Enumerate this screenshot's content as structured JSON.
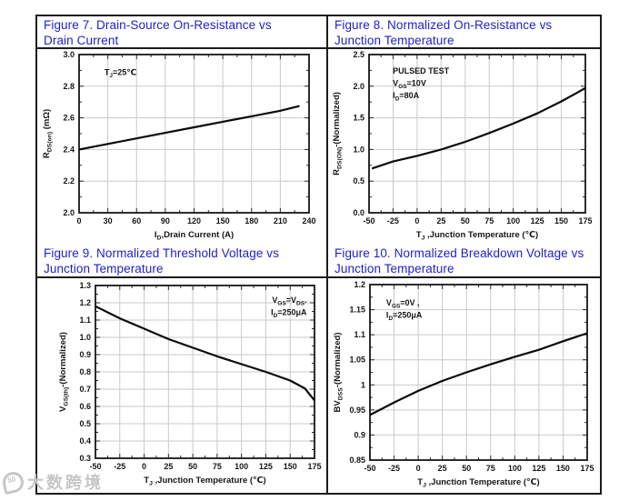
{
  "page": {
    "watermark_text": "大数跨境",
    "watermark_badge": "50",
    "title_color": "#1e1ecb"
  },
  "cells": [
    {
      "title": "Figure 7. Drain-Source On-Resistance vs Drain Current"
    },
    {
      "title": "Figure 8. Normalized On-Resistance vs Junction Temperature"
    },
    {
      "title": "Figure 9. Normalized Threshold Voltage vs Junction Temperature"
    },
    {
      "title": "Figure 10. Normalized Breakdown Voltage vs Junction Temperature"
    }
  ],
  "chart_data": [
    {
      "type": "line",
      "title": "Figure 7. Drain-Source On-Resistance vs Drain Current",
      "xlabel": "I_{D},Drain Current (A)",
      "ylabel": "R_{DS(on)} (mΩ)",
      "xlim": [
        0,
        240
      ],
      "ylim": [
        2.0,
        3.0
      ],
      "xticks": [
        0,
        30,
        60,
        90,
        120,
        150,
        180,
        210,
        240
      ],
      "xtick_labels": [
        "0",
        "30",
        "60",
        "90",
        "120",
        "150",
        "180",
        "210",
        "240"
      ],
      "yticks": [
        2.0,
        2.2,
        2.4,
        2.6,
        2.8,
        3.0
      ],
      "ytick_labels": [
        "2.0",
        "2.2",
        "2.4",
        "2.6",
        "2.8",
        "3.0"
      ],
      "grid": true,
      "legend": "none",
      "annotation": {
        "align": "left",
        "lines": [
          "T_{J}=25℃"
        ]
      },
      "x": [
        0,
        30,
        60,
        90,
        120,
        150,
        180,
        210,
        230
      ],
      "y": [
        2.4,
        2.435,
        2.47,
        2.505,
        2.54,
        2.575,
        2.61,
        2.645,
        2.675
      ]
    },
    {
      "type": "line",
      "title": "Figure 8. Normalized On-Resistance vs Junction Temperature",
      "xlabel": "T_{J} ,Junction Temperature (℃)",
      "ylabel": "R_{DS(ON)}-(Normalized)",
      "xlim": [
        -50,
        175
      ],
      "ylim": [
        0.0,
        2.5
      ],
      "xticks": [
        -50,
        -25,
        0,
        25,
        50,
        75,
        100,
        125,
        150,
        175
      ],
      "xtick_labels": [
        "-50",
        "-25",
        "0",
        "25",
        "50",
        "75",
        "100",
        "125",
        "150",
        "175"
      ],
      "yticks": [
        0.0,
        0.5,
        1.0,
        1.5,
        2.0,
        2.5
      ],
      "ytick_labels": [
        "0.0",
        "0.5",
        "1.0",
        "1.5",
        "2.0",
        "2.5"
      ],
      "grid": true,
      "legend": "none",
      "annotation": {
        "align": "left",
        "lines": [
          "PULSED TEST",
          "V_{GS}=10V",
          "I_{D}=80A"
        ]
      },
      "x": [
        -47,
        -25,
        0,
        25,
        50,
        75,
        100,
        125,
        150,
        175
      ],
      "y": [
        0.7,
        0.81,
        0.9,
        1.0,
        1.12,
        1.26,
        1.41,
        1.57,
        1.76,
        1.97
      ]
    },
    {
      "type": "line",
      "title": "Figure 9. Normalized Threshold Voltage vs Junction Temperature",
      "xlabel": "T_{J} ,Junction Temperature (℃)",
      "ylabel": "V_{GS(th)}-(Normalized)",
      "xlim": [
        -50,
        175
      ],
      "ylim": [
        0.3,
        1.3
      ],
      "xticks": [
        -50,
        -25,
        0,
        25,
        50,
        75,
        100,
        125,
        150,
        175
      ],
      "xtick_labels": [
        "-50",
        "-25",
        "0",
        "25",
        "50",
        "75",
        "100",
        "125",
        "150",
        "175"
      ],
      "yticks": [
        0.3,
        0.4,
        0.5,
        0.6,
        0.7,
        0.8,
        0.9,
        1.0,
        1.1,
        1.2,
        1.3
      ],
      "ytick_labels": [
        "0.3",
        "0.4",
        "0.5",
        "0.6",
        "0.7",
        "0.8",
        "0.9",
        "1.0",
        "1.1",
        "1.2",
        "1.3"
      ],
      "grid": true,
      "legend": "none",
      "annotation": {
        "align": "right",
        "lines": [
          "V_{GS}=V_{DS}.",
          "I_{D}=250μA"
        ]
      },
      "x": [
        -50,
        -25,
        0,
        25,
        50,
        75,
        100,
        125,
        150,
        165,
        175
      ],
      "y": [
        1.18,
        1.11,
        1.05,
        0.99,
        0.94,
        0.89,
        0.845,
        0.8,
        0.75,
        0.705,
        0.635
      ]
    },
    {
      "type": "line",
      "title": "Figure 10. Normalized Breakdown Voltage vs Junction Temperature",
      "xlabel": "T_{J} ,Junction Temperature (℃)",
      "ylabel": "BV_{DSS}-(Normalized)",
      "xlim": [
        -50,
        175
      ],
      "ylim": [
        0.85,
        1.2
      ],
      "xticks": [
        -50,
        -25,
        0,
        25,
        50,
        75,
        100,
        125,
        150,
        175
      ],
      "xtick_labels": [
        "-50",
        "-25",
        "0",
        "25",
        "50",
        "75",
        "100",
        "125",
        "150",
        "175"
      ],
      "yticks": [
        0.85,
        0.9,
        0.95,
        1.0,
        1.05,
        1.1,
        1.15,
        1.2
      ],
      "ytick_labels": [
        "0.85",
        "0.9",
        "0.95",
        "1",
        "1.05",
        "1.1",
        "1.15",
        "1.2"
      ],
      "grid": true,
      "legend": "none",
      "annotation": {
        "align": "left",
        "lines": [
          "V_{GS}=0V ,",
          "I_{D}=250μA"
        ]
      },
      "x": [
        -50,
        -25,
        0,
        25,
        50,
        75,
        100,
        125,
        150,
        175
      ],
      "y": [
        0.94,
        0.965,
        0.988,
        1.008,
        1.025,
        1.041,
        1.056,
        1.07,
        1.087,
        1.103
      ]
    }
  ]
}
